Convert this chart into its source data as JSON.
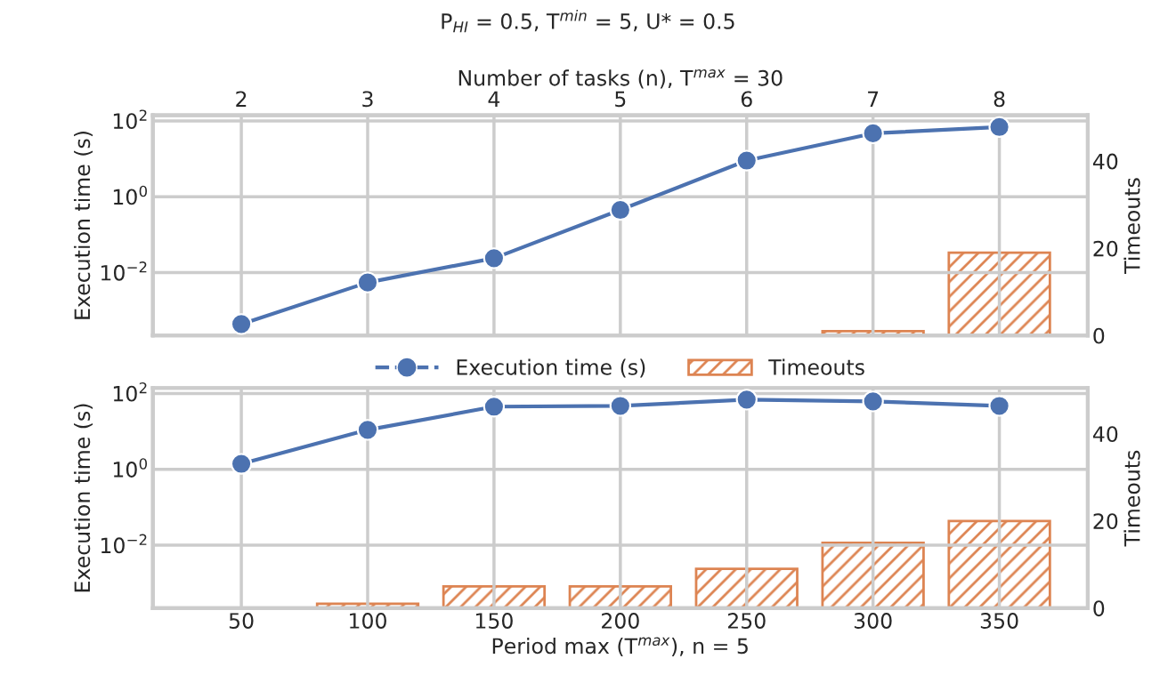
{
  "chart_data": [
    {
      "type": "line",
      "title": "P$_{HI}$ = 0.5, T$^{min}$ = 5, U* = 0.5",
      "x2label": "Number of tasks (n), T$^{max}$ = 30",
      "ylabel": "Execution time (s)",
      "y2label": "Timeouts",
      "categories": [
        "2",
        "3",
        "4",
        "5",
        "6",
        "7",
        "8"
      ],
      "series": [
        {
          "name": "Execution time (s)",
          "color": "#4c72b0",
          "values": [
            0.00044,
            0.0055,
            0.024,
            0.45,
            9,
            47,
            69
          ]
        },
        {
          "name": "Timeouts",
          "type": "bar",
          "axis": "y2",
          "color": "#dd8452",
          "values": [
            null,
            null,
            null,
            null,
            null,
            1,
            19
          ]
        }
      ],
      "log": "y",
      "ylim": [
        0.00022,
        140
      ],
      "yticks": [
        {
          "value": 0.01,
          "label": "10$^{−2}$"
        },
        {
          "value": 1,
          "label": "10$^{0}$"
        },
        {
          "value": 100,
          "label": "10$^{2}$"
        }
      ],
      "y2lim": [
        0,
        50.5
      ],
      "y2ticks": [
        0,
        20,
        40
      ],
      "grid": true,
      "legend": "bottom",
      "marker": "circle",
      "line_style": "solid"
    },
    {
      "type": "line",
      "xlabel": "Period max (T$^{max}$), n = 5",
      "ylabel": "Execution time (s)",
      "y2label": "Timeouts",
      "categories": [
        "50",
        "100",
        "150",
        "200",
        "250",
        "300",
        "350"
      ],
      "series": [
        {
          "color": "#4c72b0",
          "values": [
            1.4,
            11,
            45,
            47,
            69,
            62,
            47
          ]
        },
        {
          "type": "bar",
          "axis": "y2",
          "color": "#dd8452",
          "values": [
            null,
            1,
            5,
            5,
            9,
            15,
            20
          ]
        }
      ],
      "log": "y",
      "ylim": [
        0.00022,
        140
      ],
      "yticks": [
        {
          "value": 0.01,
          "label": "10$^{−2}$"
        },
        {
          "value": 1,
          "label": "10$^{0}$"
        },
        {
          "value": 100,
          "label": "10$^{2}$"
        }
      ],
      "y2lim": [
        0,
        50.5
      ],
      "y2ticks": [
        0,
        20,
        40
      ],
      "grid": true,
      "legend": false,
      "marker": "circle",
      "line_style": "solid"
    }
  ]
}
